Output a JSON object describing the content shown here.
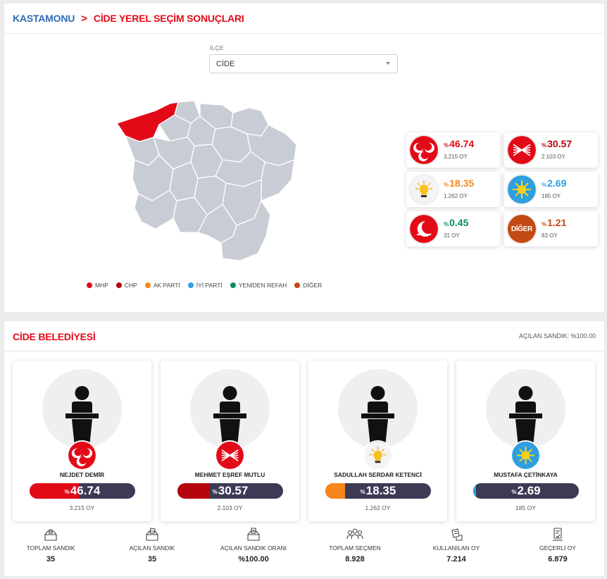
{
  "breadcrumb": {
    "city": "KASTAMONU",
    "separator": ">",
    "page": "CİDE YEREL SEÇİM SONUÇLARI"
  },
  "district_select": {
    "label": "İLÇE",
    "value": "CİDE"
  },
  "legend": [
    {
      "name": "MHP",
      "color": "#e30a17"
    },
    {
      "name": "CHP",
      "color": "#b5060e"
    },
    {
      "name": "AK PARTİ",
      "color": "#f7861d"
    },
    {
      "name": "İYİ PARTİ",
      "color": "#2e9fe0"
    },
    {
      "name": "YENİDEN REFAH",
      "color": "#0a8a5d"
    },
    {
      "name": "DİĞER",
      "color": "#c44a14"
    }
  ],
  "party_results": [
    {
      "party": "MHP",
      "logo": "mhp-logo-icon",
      "pct_symbol": "%",
      "pct": "46.74",
      "votes": "3.215 OY",
      "color": "#e30a17"
    },
    {
      "party": "CHP",
      "logo": "chp-logo-icon",
      "pct_symbol": "%",
      "pct": "30.57",
      "votes": "2.103 OY",
      "color": "#b5060e"
    },
    {
      "party": "AK PARTİ",
      "logo": "akp-logo-icon",
      "pct_symbol": "%",
      "pct": "18.35",
      "votes": "1.262 OY",
      "color": "#f7861d"
    },
    {
      "party": "İYİ PARTİ",
      "logo": "iyi-logo-icon",
      "pct_symbol": "%",
      "pct": "2.69",
      "votes": "185 OY",
      "color": "#2e9fe0"
    },
    {
      "party": "YENİDEN REFAH",
      "logo": "yrp-logo-icon",
      "pct_symbol": "%",
      "pct": "0.45",
      "votes": "31 OY",
      "color": "#0a8a5d"
    },
    {
      "party": "DİĞER",
      "logo": "diger-logo-icon",
      "logo_text": "DİĞER",
      "pct_symbol": "%",
      "pct": "1.21",
      "votes": "83 OY",
      "color": "#c44a14"
    }
  ],
  "municipality": {
    "title": "CİDE BELEDİYESİ",
    "opened_ballots": "AÇILAN SANDIK: %100.00"
  },
  "candidates": [
    {
      "name": "NEJDET DEMİR",
      "party": "MHP",
      "pct_symbol": "%",
      "pct": "46.74",
      "fraction": 0.4674,
      "votes": "3.215 OY",
      "color": "#e30a17"
    },
    {
      "name": "MEHMET EŞREF MUTLU",
      "party": "CHP",
      "pct_symbol": "%",
      "pct": "30.57",
      "fraction": 0.3057,
      "votes": "2.103 OY",
      "color": "#b5060e"
    },
    {
      "name": "SADULLAH SERDAR KETENCİ",
      "party": "AK PARTİ",
      "pct_symbol": "%",
      "pct": "18.35",
      "fraction": 0.1835,
      "votes": "1.262 OY",
      "color": "#f7861d"
    },
    {
      "name": "MUSTAFA ÇETİNKAYA",
      "party": "İYİ PARTİ",
      "pct_symbol": "%",
      "pct": "2.69",
      "fraction": 0.0269,
      "votes": "185 OY",
      "color": "#2e9fe0"
    }
  ],
  "stats": [
    {
      "label": "TOPLAM SANDIK",
      "value": "35",
      "icon": "ballot-box-icon"
    },
    {
      "label": "AÇILAN SANDIK",
      "value": "35",
      "icon": "opened-ballot-box-icon"
    },
    {
      "label": "AÇILAN SANDIK ORANI",
      "value": "%100.00",
      "icon": "ballot-ratio-icon"
    },
    {
      "label": "TOPLAM SEÇMEN",
      "value": "8.928",
      "icon": "voters-icon"
    },
    {
      "label": "KULLANILAN OY",
      "value": "7.214",
      "icon": "cast-vote-icon"
    },
    {
      "label": "GEÇERLİ OY",
      "value": "6.879",
      "icon": "valid-vote-icon"
    }
  ],
  "colors": {
    "accent_red": "#e30a17",
    "crumb_blue": "#2f6db5",
    "bar_track": "#3d3a55",
    "map_gray": "#c8ccd4",
    "map_highlight": "#e30a17"
  }
}
